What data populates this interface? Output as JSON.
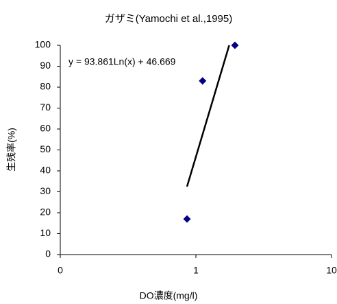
{
  "chart_data": {
    "type": "scatter",
    "title": "ガザミ(Yamochi et al.,1995)",
    "xlabel": "DO濃度(mg/l)",
    "ylabel": "生残率(%)",
    "xscale": "log",
    "xlim": [
      0.1,
      10
    ],
    "xticks": [
      {
        "value": 0.1,
        "label": "0"
      },
      1,
      10
    ],
    "ylim": [
      0,
      100
    ],
    "yticks": [
      0,
      10,
      20,
      30,
      40,
      50,
      60,
      70,
      80,
      90,
      100
    ],
    "grid": false,
    "series": [
      {
        "name": "ガザミ",
        "color": "#000080",
        "x": [
          0.86,
          1.12,
          1.94
        ],
        "values": [
          17,
          83,
          100
        ]
      }
    ],
    "trendline": {
      "label": "y = 93.861Ln(x) + 46.669",
      "color": "#000000",
      "x": [
        0.86,
        1.76
      ],
      "values": [
        32.5,
        100
      ]
    }
  }
}
